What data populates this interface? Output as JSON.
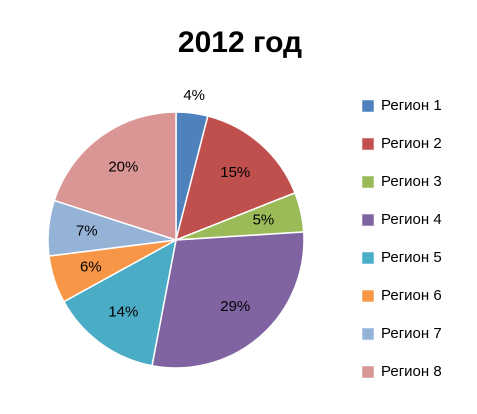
{
  "chart_data": {
    "type": "pie",
    "title": "2012 год",
    "categories": [
      "Регион 1",
      "Регион 2",
      "Регион 3",
      "Регион 4",
      "Регион 5",
      "Регион 6",
      "Регион 7",
      "Регион 8"
    ],
    "series": [
      {
        "values": [
          4,
          15,
          5,
          29,
          14,
          6,
          7,
          20
        ],
        "value_labels": [
          "4%",
          "15%",
          "5%",
          "29%",
          "14%",
          "6%",
          "7%",
          "20%"
        ],
        "colors": [
          "#4f81bd",
          "#c0504d",
          "#9bbb59",
          "#8064a2",
          "#4bacc6",
          "#f79646",
          "#95b3d7",
          "#d99694"
        ]
      }
    ],
    "legend": "right"
  }
}
